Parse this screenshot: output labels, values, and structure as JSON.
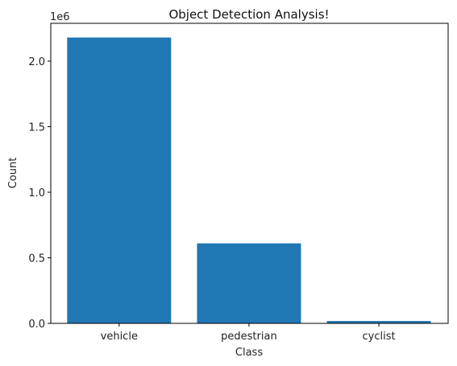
{
  "chart_data": {
    "type": "bar",
    "title": "Object Detection Analysis!",
    "xlabel": "Class",
    "ylabel": "Count",
    "categories": [
      "vehicle",
      "pedestrian",
      "cyclist"
    ],
    "values": [
      2180000,
      610000,
      18000
    ],
    "ylim": [
      0,
      2288000
    ],
    "yticks": [
      0,
      500000,
      1000000,
      1500000,
      2000000
    ],
    "ytick_labels": [
      "0.0",
      "0.5",
      "1.0",
      "1.5",
      "2.0"
    ],
    "y_offset_label": "1e6",
    "bar_color": "#1f77b4",
    "grid": false
  }
}
